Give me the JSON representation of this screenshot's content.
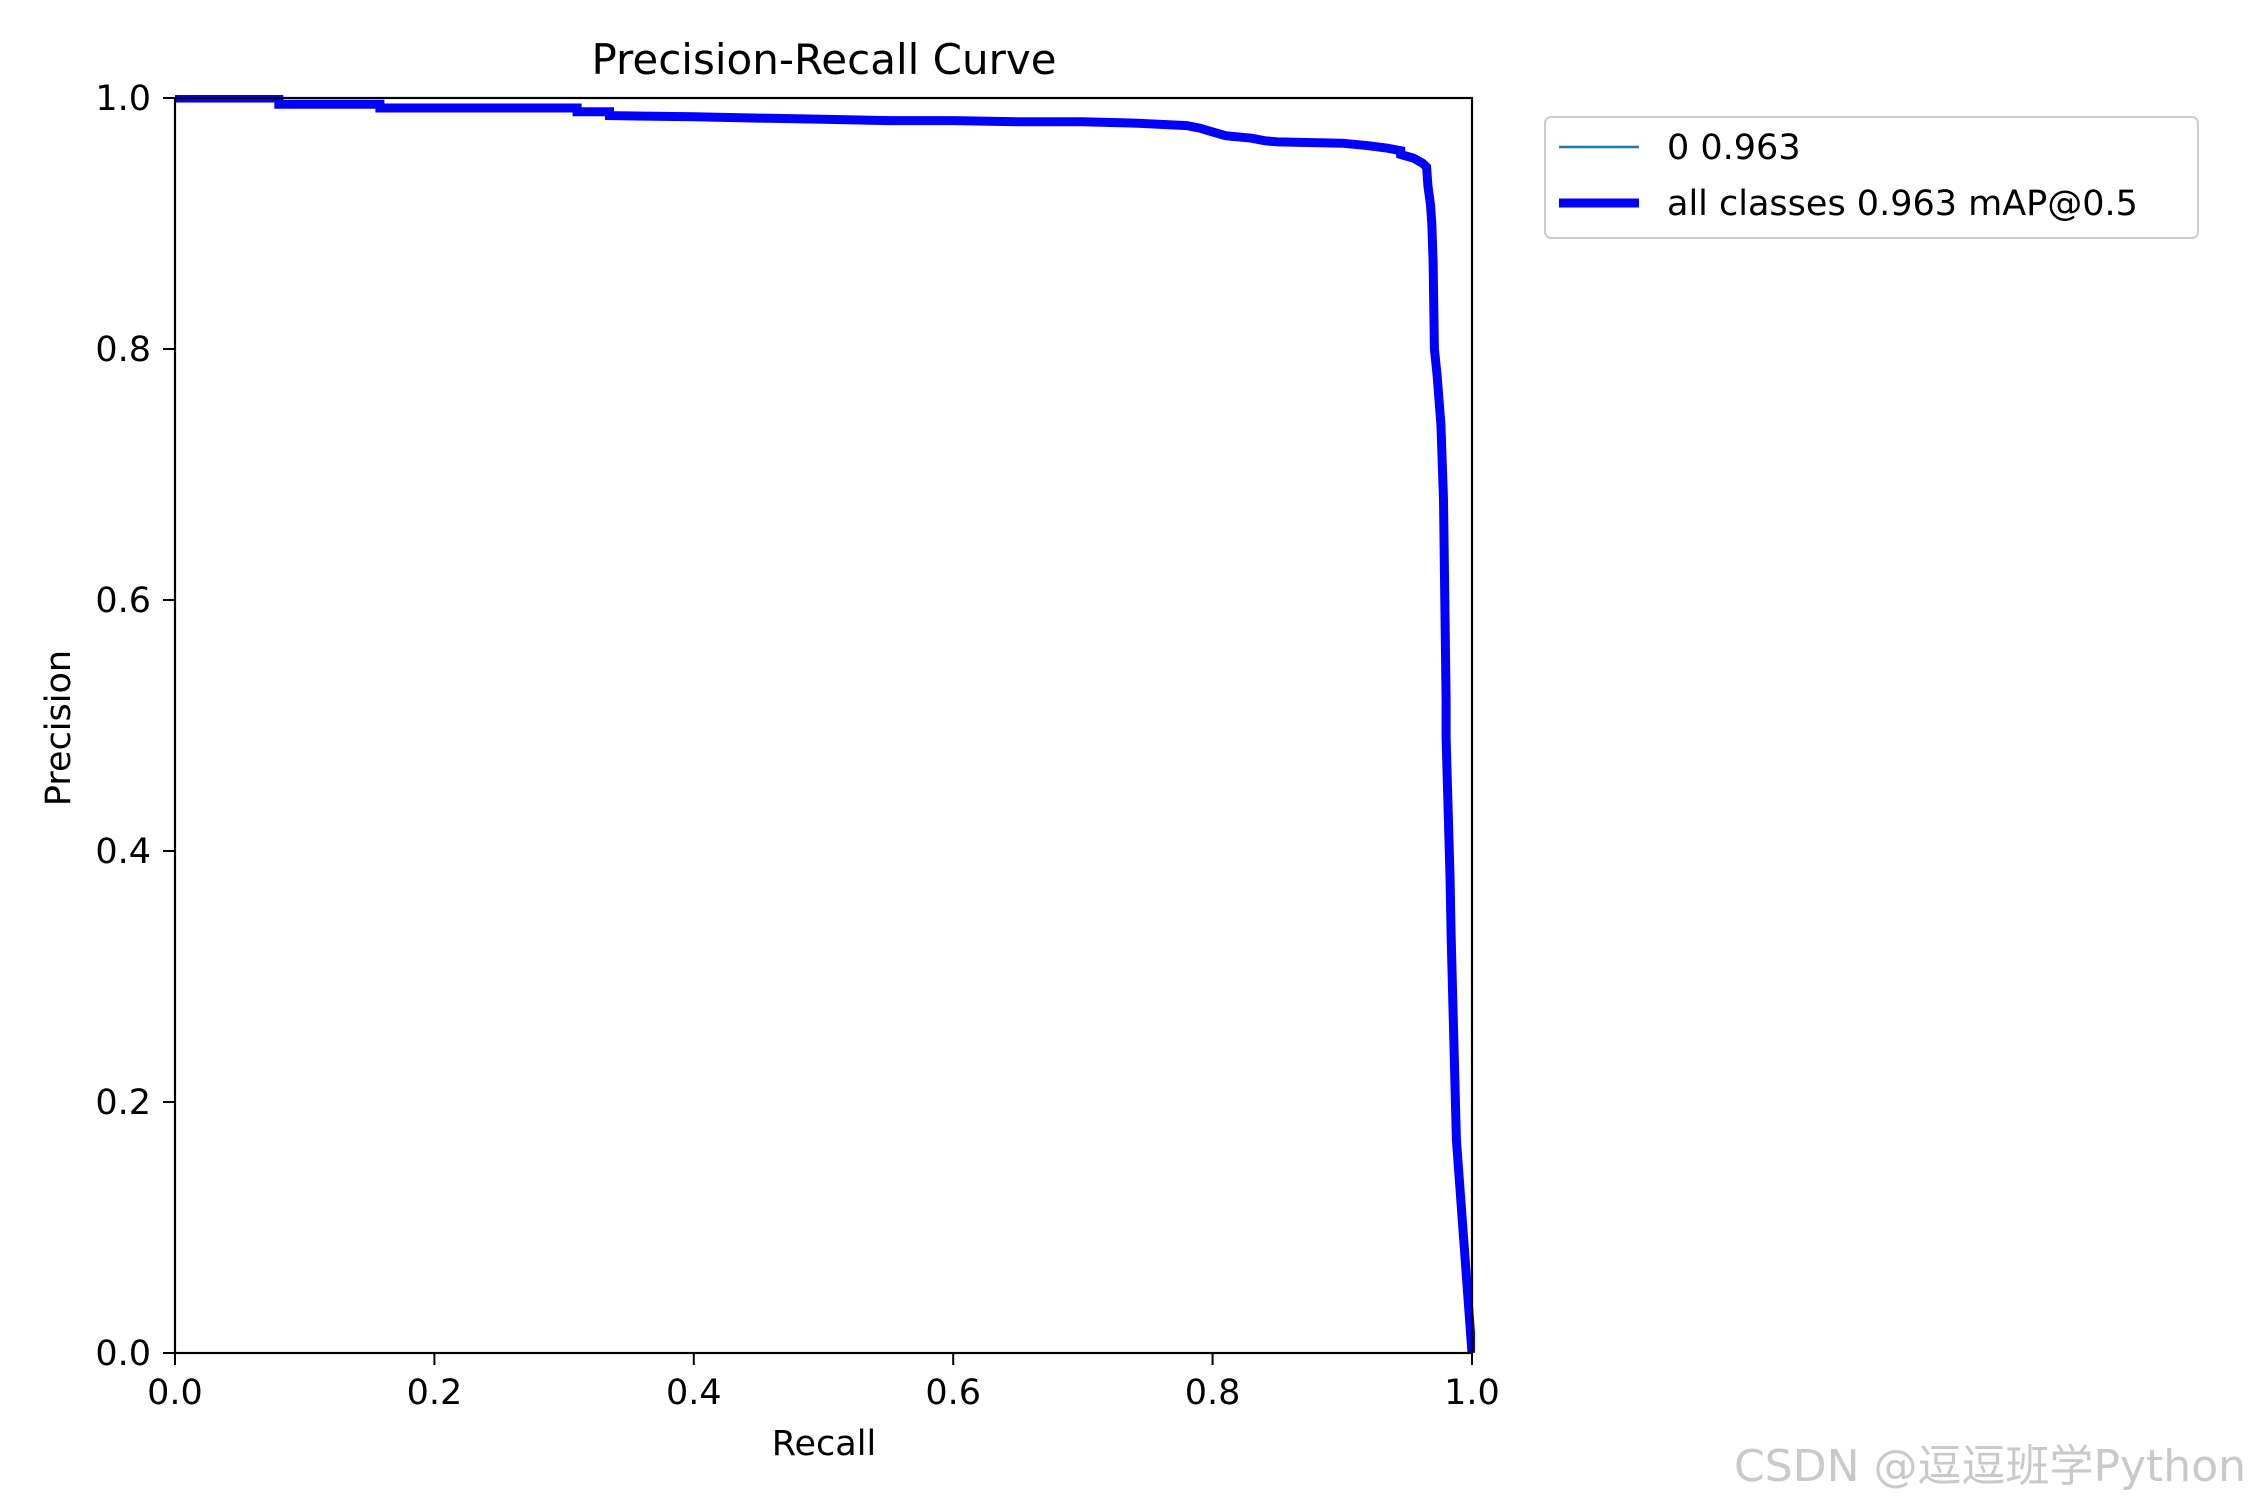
{
  "chart_data": {
    "type": "line",
    "title": "Precision-Recall Curve",
    "xlabel": "Recall",
    "ylabel": "Precision",
    "xlim": [
      0.0,
      1.0
    ],
    "ylim": [
      0.0,
      1.0
    ],
    "xticks": [
      "0.0",
      "0.2",
      "0.4",
      "0.6",
      "0.8",
      "1.0"
    ],
    "yticks": [
      "0.0",
      "0.2",
      "0.4",
      "0.6",
      "0.8",
      "1.0"
    ],
    "grid": false,
    "legend_position": "outside-upper-right",
    "series": [
      {
        "name": "0 0.963",
        "color": "#1f77b4",
        "style": "thin",
        "x": [
          0.0,
          0.08,
          0.08,
          0.158,
          0.158,
          0.31,
          0.31,
          0.335,
          0.335,
          0.4,
          0.45,
          0.5,
          0.55,
          0.6,
          0.65,
          0.7,
          0.74,
          0.78,
          0.79,
          0.8,
          0.81,
          0.83,
          0.84,
          0.85,
          0.9,
          0.92,
          0.935,
          0.945,
          0.945,
          0.955,
          0.962,
          0.965,
          0.966,
          0.968,
          0.969,
          0.97,
          0.971,
          0.973,
          0.976,
          0.978,
          0.979,
          0.98,
          0.98,
          0.983,
          0.984,
          0.986,
          0.988,
          1.0
        ],
        "y": [
          1.0,
          1.0,
          0.995,
          0.995,
          0.992,
          0.992,
          0.989,
          0.989,
          0.986,
          0.985,
          0.984,
          0.983,
          0.982,
          0.982,
          0.981,
          0.981,
          0.98,
          0.978,
          0.976,
          0.973,
          0.97,
          0.968,
          0.966,
          0.965,
          0.964,
          0.962,
          0.96,
          0.958,
          0.955,
          0.952,
          0.948,
          0.945,
          0.93,
          0.915,
          0.9,
          0.87,
          0.8,
          0.78,
          0.74,
          0.68,
          0.6,
          0.52,
          0.49,
          0.38,
          0.33,
          0.25,
          0.17,
          0.0
        ]
      },
      {
        "name": "all classes 0.963 mAP@0.5",
        "color": "#0000ff",
        "style": "thick",
        "x": [
          0.0,
          0.08,
          0.08,
          0.158,
          0.158,
          0.31,
          0.31,
          0.335,
          0.335,
          0.4,
          0.45,
          0.5,
          0.55,
          0.6,
          0.65,
          0.7,
          0.74,
          0.78,
          0.79,
          0.8,
          0.81,
          0.83,
          0.84,
          0.85,
          0.9,
          0.92,
          0.935,
          0.945,
          0.945,
          0.955,
          0.962,
          0.965,
          0.966,
          0.968,
          0.969,
          0.97,
          0.971,
          0.973,
          0.976,
          0.978,
          0.979,
          0.98,
          0.98,
          0.983,
          0.984,
          0.986,
          0.988,
          1.0
        ],
        "y": [
          1.0,
          1.0,
          0.995,
          0.995,
          0.992,
          0.992,
          0.989,
          0.989,
          0.986,
          0.985,
          0.984,
          0.983,
          0.982,
          0.982,
          0.981,
          0.981,
          0.98,
          0.978,
          0.976,
          0.973,
          0.97,
          0.968,
          0.966,
          0.965,
          0.964,
          0.962,
          0.96,
          0.958,
          0.955,
          0.952,
          0.948,
          0.945,
          0.93,
          0.915,
          0.9,
          0.87,
          0.8,
          0.78,
          0.74,
          0.68,
          0.6,
          0.52,
          0.49,
          0.38,
          0.33,
          0.25,
          0.17,
          0.0
        ]
      }
    ]
  },
  "watermark": "CSDN @逗逗班学Python"
}
